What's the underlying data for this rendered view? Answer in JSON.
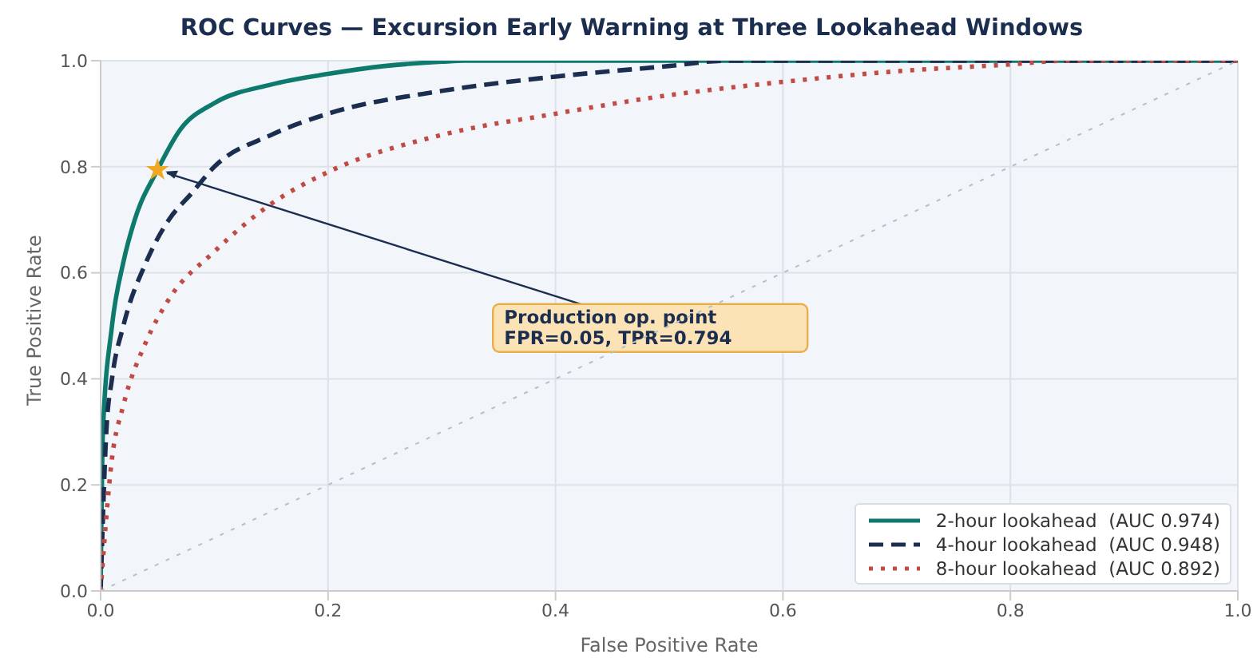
{
  "chart_data": {
    "type": "line",
    "title": "ROC Curves — Excursion Early Warning at Three Lookahead Windows",
    "xlabel": "False Positive Rate",
    "ylabel": "True Positive Rate",
    "xlim": [
      0,
      1
    ],
    "ylim": [
      0,
      1
    ],
    "xticks": [
      {
        "value": 0,
        "label": "0.0"
      },
      0.2,
      0.4,
      0.6,
      0.8,
      {
        "value": 1,
        "label": "1.0"
      }
    ],
    "yticks": [
      {
        "value": 0,
        "label": "0.0"
      },
      0.2,
      0.4,
      0.6,
      0.8,
      {
        "value": 1,
        "label": "1.0"
      }
    ],
    "grid": true,
    "legend": "bottom right",
    "marker": "none",
    "series": [
      {
        "name": "2-hour lookahead  (AUC 0.974)",
        "color": "#0e7a6e",
        "line_style": "solid",
        "x": [
          0,
          0.002,
          0.01,
          0.02,
          0.03,
          0.05,
          0.07,
          0.1,
          0.15,
          0.2,
          0.25,
          0.3,
          0.32,
          1
        ],
        "values": [
          0,
          0.3,
          0.5,
          0.62,
          0.7,
          0.794,
          0.87,
          0.92,
          0.955,
          0.975,
          0.99,
          0.998,
          1,
          1
        ]
      },
      {
        "name": "4-hour lookahead  (AUC 0.948)",
        "color": "#1c2e4f",
        "line_style": "dashed",
        "x": [
          0,
          0.005,
          0.01,
          0.02,
          0.04,
          0.06,
          0.08,
          0.1,
          0.15,
          0.2,
          0.3,
          0.4,
          0.5,
          0.55,
          1
        ],
        "values": [
          0,
          0.3,
          0.4,
          0.5,
          0.62,
          0.7,
          0.75,
          0.8,
          0.86,
          0.9,
          0.943,
          0.97,
          0.99,
          1,
          1
        ]
      },
      {
        "name": "8-hour lookahead  (AUC 0.892)",
        "color": "#c24a45",
        "line_style": "dotted",
        "x": [
          0,
          0.01,
          0.02,
          0.04,
          0.06,
          0.1,
          0.15,
          0.2,
          0.3,
          0.4,
          0.5,
          0.6,
          0.7,
          0.8,
          0.85,
          1
        ],
        "values": [
          0,
          0.25,
          0.35,
          0.47,
          0.55,
          0.64,
          0.73,
          0.79,
          0.86,
          0.9,
          0.935,
          0.96,
          0.98,
          0.993,
          1,
          1
        ]
      },
      {
        "color": "#b8bec6",
        "line_style": "dotted",
        "x": [
          0,
          1
        ],
        "values": [
          0,
          1
        ]
      },
      {
        "type": "scatter",
        "color": "#f0a820",
        "marker": "star",
        "x": [
          0.05
        ],
        "values": [
          0.794
        ]
      }
    ],
    "annotations": [
      {
        "text": "Production op. point\nFPR=0.05, TPR=0.794",
        "x": 0.05,
        "y": 0.794
      }
    ]
  }
}
